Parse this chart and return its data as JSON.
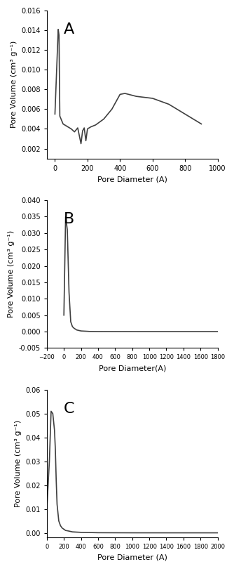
{
  "panel_A": {
    "label": "A",
    "xlabel": "Pore Diameter (A)",
    "ylabel": "Pore Volume (cm³ g⁻¹)",
    "xlim": [
      -50,
      1000
    ],
    "ylim": [
      0.001,
      0.016
    ],
    "xticks": [
      0,
      200,
      400,
      600,
      800,
      1000
    ],
    "yticks": [
      0.002,
      0.004,
      0.006,
      0.008,
      0.01,
      0.012,
      0.014,
      0.016
    ],
    "x": [
      0,
      20,
      25,
      30,
      50,
      80,
      100,
      120,
      140,
      150,
      160,
      170,
      180,
      190,
      200,
      220,
      250,
      300,
      350,
      400,
      430,
      500,
      600,
      700,
      800,
      900
    ],
    "y": [
      0.0055,
      0.0141,
      0.0135,
      0.0053,
      0.0045,
      0.0042,
      0.004,
      0.0037,
      0.0041,
      0.0033,
      0.0025,
      0.0038,
      0.0041,
      0.0028,
      0.004,
      0.0042,
      0.0044,
      0.005,
      0.006,
      0.0075,
      0.0076,
      0.0073,
      0.0071,
      0.0065,
      0.0055,
      0.0045
    ]
  },
  "panel_B": {
    "label": "B",
    "xlabel": "Pore Diameter(A)",
    "ylabel": "Pore Volume (cm³ g⁻¹)",
    "xlim": [
      -200,
      1800
    ],
    "ylim": [
      -0.005,
      0.04
    ],
    "xticks": [
      -200,
      0,
      200,
      400,
      600,
      800,
      1000,
      1200,
      1400,
      1600,
      1800
    ],
    "yticks": [
      -0.005,
      0.0,
      0.005,
      0.01,
      0.015,
      0.02,
      0.025,
      0.03,
      0.035,
      0.04
    ],
    "x": [
      0,
      20,
      40,
      60,
      80,
      100,
      120,
      150,
      200,
      300,
      400,
      600,
      800,
      1000,
      1200,
      1400,
      1600,
      1800
    ],
    "y": [
      0.005,
      0.035,
      0.031,
      0.012,
      0.003,
      0.0015,
      0.001,
      0.0005,
      0.0002,
      5e-05,
      2e-05,
      1e-05,
      5e-06,
      2e-06,
      1e-06,
      0.0,
      0.0,
      0.0
    ]
  },
  "panel_C": {
    "label": "C",
    "xlabel": "Pore Diameter (A)",
    "ylabel": "Pore Volume (cm³ g⁻¹)",
    "xlim": [
      0,
      2000
    ],
    "ylim": [
      -0.002,
      0.06
    ],
    "xticks": [
      0,
      200,
      400,
      600,
      800,
      1000,
      1200,
      1400,
      1600,
      1800,
      2000
    ],
    "yticks": [
      0.0,
      0.01,
      0.02,
      0.03,
      0.04,
      0.05,
      0.06
    ],
    "x": [
      0,
      30,
      50,
      70,
      90,
      100,
      110,
      120,
      140,
      160,
      180,
      200,
      220,
      250,
      300,
      400,
      600,
      800,
      1000,
      1200,
      1400,
      1600,
      1800,
      2000
    ],
    "y": [
      0.01,
      0.03,
      0.051,
      0.05,
      0.043,
      0.035,
      0.022,
      0.012,
      0.005,
      0.003,
      0.002,
      0.0015,
      0.001,
      0.0008,
      0.0004,
      0.0002,
      5e-05,
      3e-05,
      1e-05,
      5e-06,
      3e-06,
      1e-06,
      0.0,
      0.0
    ]
  },
  "line_color": "#404040",
  "line_width": 1.2,
  "background_color": "#ffffff",
  "label_fontsize": 8,
  "tick_fontsize": 7,
  "panel_label_fontsize": 16
}
